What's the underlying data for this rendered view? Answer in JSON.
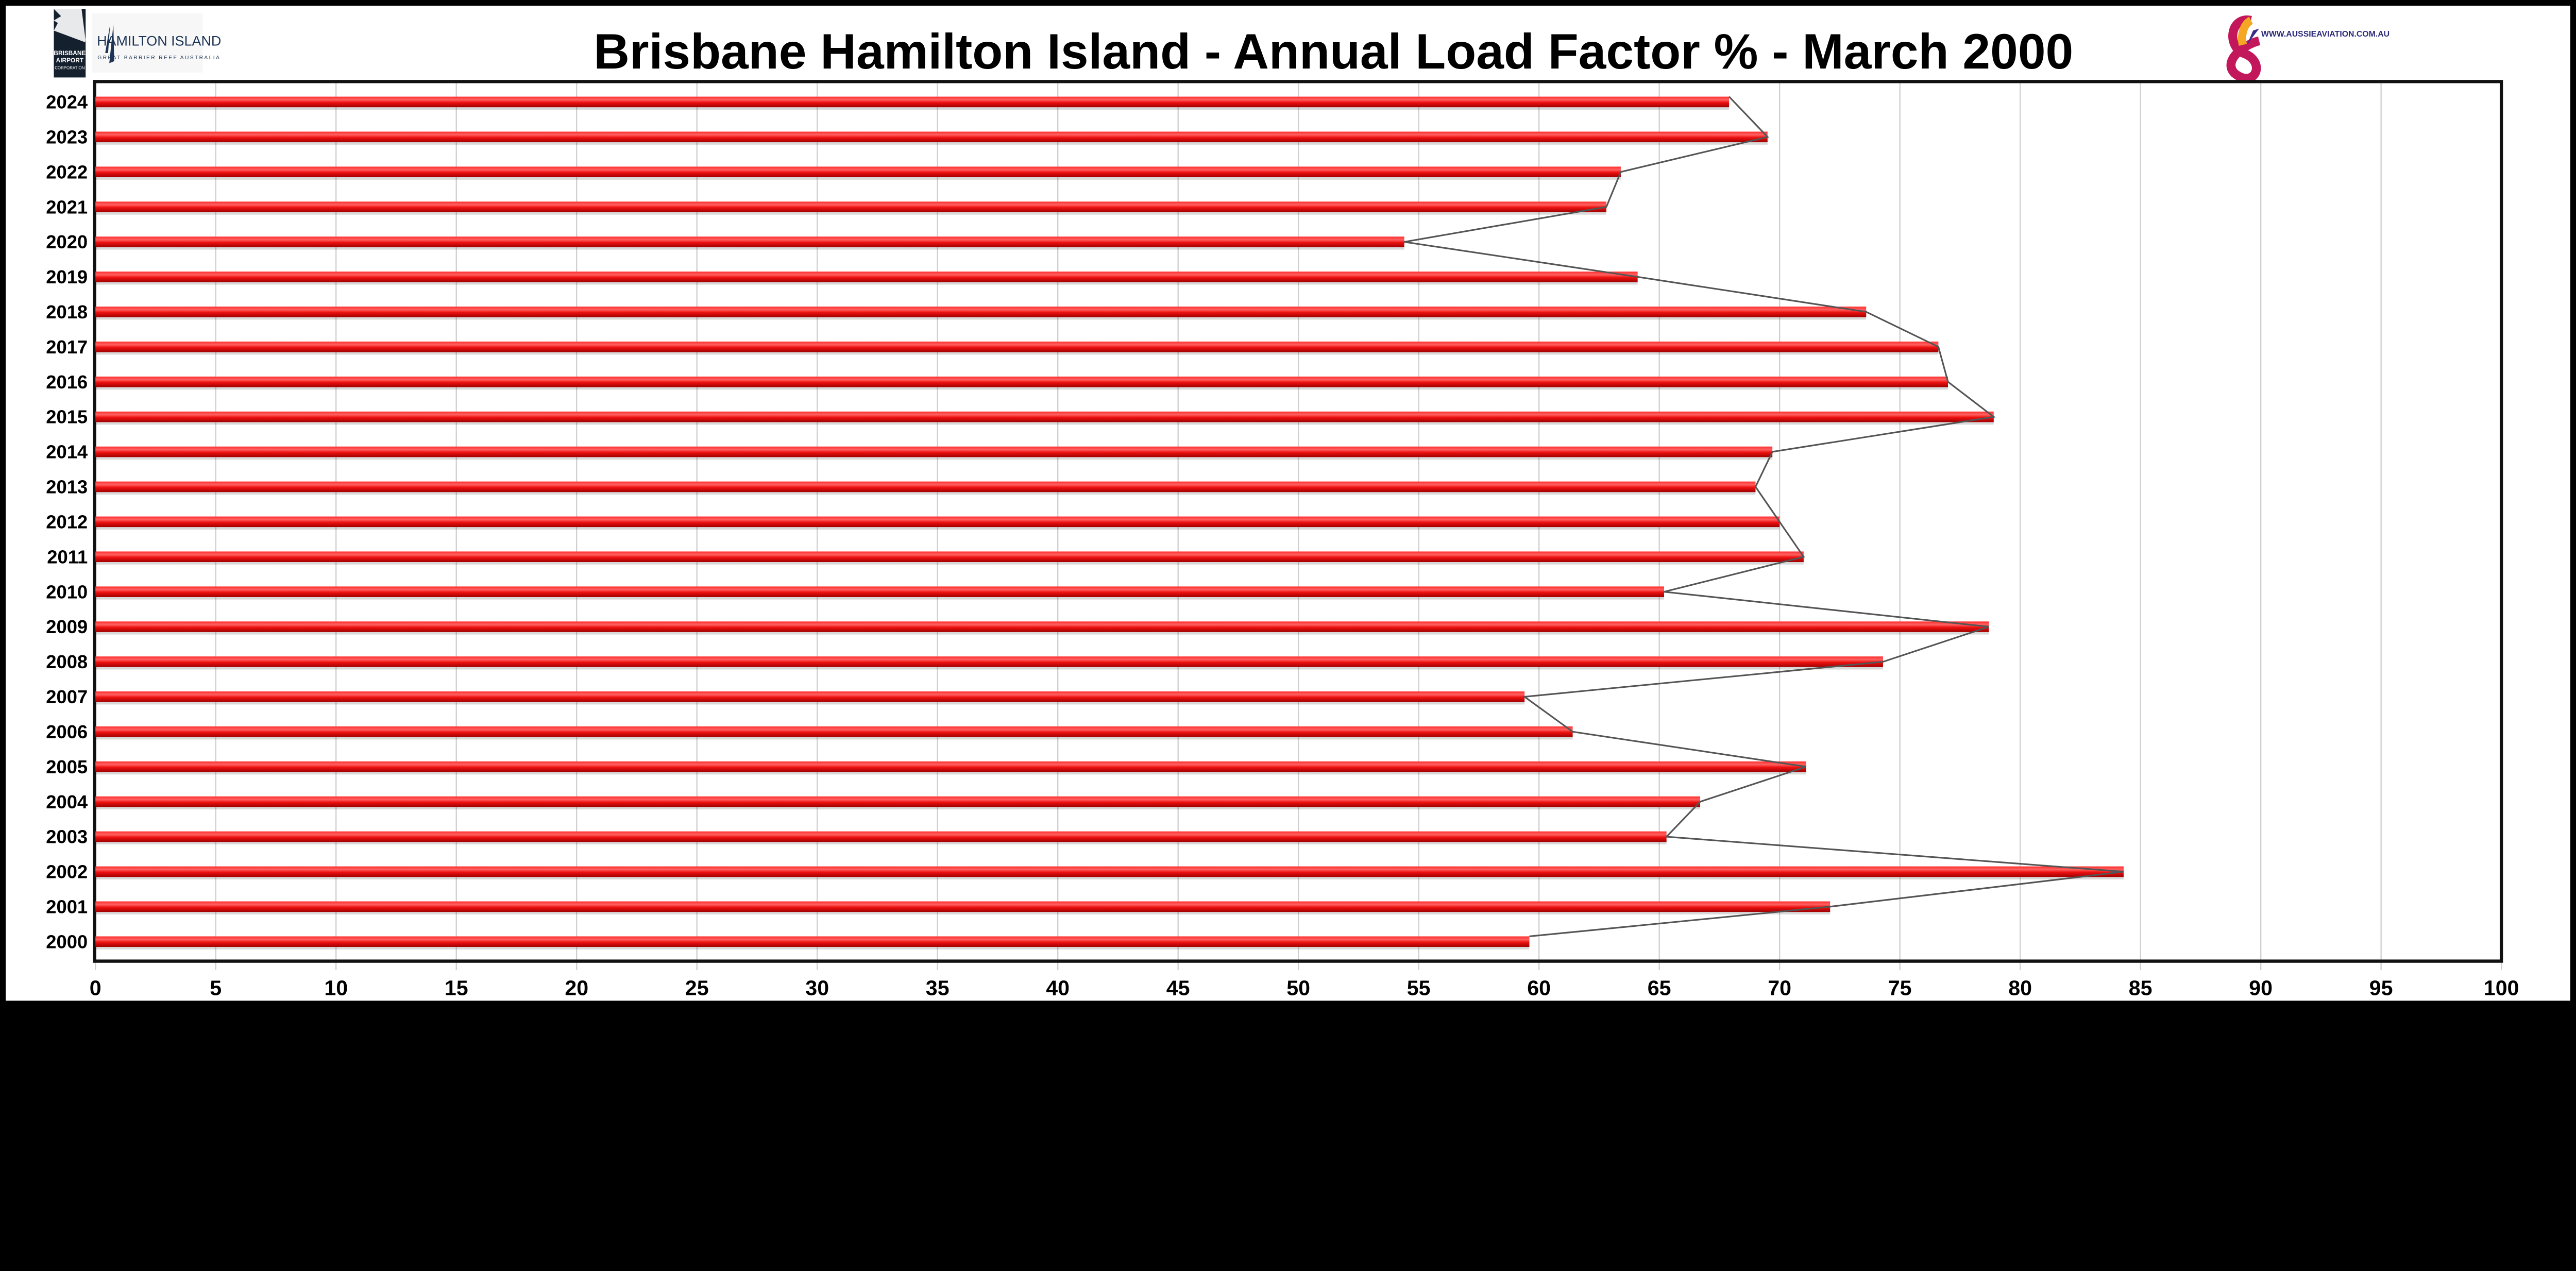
{
  "title": "Brisbane Hamilton Island - Annual Load Factor % - March 2000",
  "logos": {
    "brisbane_airport": "BRISBANE AIRPORT CORPORATION",
    "hamilton_island": "HAMILTON ISLAND",
    "hamilton_island_sub": "GREAT BARRIER REEF AUSTRALIA",
    "aussie_aviation": "WWW.AUSSIEAVIATION.COM.AU"
  },
  "colors": {
    "bar": "#ee1111",
    "line": "#555555",
    "grid": "#d0d0d0"
  },
  "chart_data": {
    "type": "bar",
    "orientation": "horizontal",
    "title": "Brisbane Hamilton Island - Annual Load Factor % - March 2000",
    "categories": [
      "2024",
      "2023",
      "2022",
      "2021",
      "2020",
      "2019",
      "2018",
      "2017",
      "2016",
      "2015",
      "2014",
      "2013",
      "2012",
      "2011",
      "2010",
      "2009",
      "2008",
      "2007",
      "2006",
      "2005",
      "2004",
      "2003",
      "2002",
      "2001",
      "2000"
    ],
    "values": [
      67.9,
      69.5,
      63.4,
      62.8,
      54.4,
      64.1,
      73.6,
      76.6,
      77.0,
      78.9,
      69.7,
      69.0,
      70.0,
      71.0,
      65.2,
      78.7,
      74.3,
      59.4,
      61.4,
      71.1,
      66.7,
      65.3,
      84.3,
      72.1,
      59.6
    ],
    "xlim": [
      0,
      100
    ],
    "xticks": [
      "0",
      "5",
      "10",
      "15",
      "20",
      "25",
      "30",
      "35",
      "40",
      "45",
      "50",
      "55",
      "60",
      "65",
      "70",
      "75",
      "80",
      "85",
      "90",
      "95",
      "100"
    ],
    "grid": true,
    "connector_line": true,
    "legend": "none"
  }
}
